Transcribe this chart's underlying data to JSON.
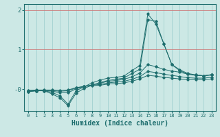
{
  "xlabel": "Humidex (Indice chaleur)",
  "xlim": [
    -0.5,
    23.5
  ],
  "ylim": [
    -0.55,
    2.15
  ],
  "bg_color": "#cce8e5",
  "line_color": "#1e6e6e",
  "grid_color_h": "#cc7777",
  "grid_color_v": "#99cccc",
  "yticks": [
    0,
    1,
    2
  ],
  "ytick_labels": [
    "-0",
    "1",
    "2"
  ],
  "xticks": [
    0,
    1,
    2,
    3,
    4,
    5,
    6,
    7,
    8,
    9,
    10,
    11,
    12,
    13,
    14,
    15,
    16,
    17,
    18,
    19,
    20,
    21,
    22,
    23
  ],
  "series": [
    {
      "x": [
        0,
        1,
        2,
        3,
        4,
        5,
        6,
        7,
        8,
        9,
        10,
        11,
        12,
        13,
        14,
        15,
        16,
        17,
        18,
        19,
        20,
        21,
        22,
        23
      ],
      "y": [
        -0.06,
        -0.04,
        -0.04,
        -0.08,
        -0.17,
        -0.38,
        -0.04,
        0.06,
        0.16,
        0.23,
        0.28,
        0.3,
        0.33,
        0.47,
        0.6,
        1.9,
        1.65,
        1.15,
        0.62,
        0.47,
        0.38,
        0.36,
        0.34,
        0.37
      ]
    },
    {
      "x": [
        0,
        1,
        2,
        3,
        4,
        5,
        6,
        7,
        8,
        9,
        10,
        11,
        12,
        13,
        14,
        15,
        16,
        17,
        18,
        19,
        20,
        21,
        22,
        23
      ],
      "y": [
        -0.06,
        -0.04,
        -0.04,
        -0.12,
        -0.22,
        -0.42,
        -0.1,
        0.02,
        0.1,
        0.17,
        0.22,
        0.25,
        0.28,
        0.4,
        0.5,
        1.76,
        1.72,
        1.15,
        0.63,
        0.49,
        0.4,
        0.36,
        0.34,
        0.36
      ]
    },
    {
      "x": [
        0,
        1,
        2,
        3,
        4,
        5,
        6,
        7,
        8,
        9,
        10,
        11,
        12,
        13,
        14,
        15,
        16,
        17,
        18,
        19,
        20,
        21,
        22,
        23
      ],
      "y": [
        -0.05,
        -0.04,
        -0.03,
        -0.05,
        -0.09,
        -0.09,
        0.01,
        0.07,
        0.11,
        0.15,
        0.2,
        0.22,
        0.25,
        0.31,
        0.41,
        0.62,
        0.57,
        0.5,
        0.46,
        0.43,
        0.38,
        0.35,
        0.34,
        0.36
      ]
    },
    {
      "x": [
        0,
        1,
        2,
        3,
        4,
        5,
        6,
        7,
        8,
        9,
        10,
        11,
        12,
        13,
        14,
        15,
        16,
        17,
        18,
        19,
        20,
        21,
        22,
        23
      ],
      "y": [
        -0.04,
        -0.03,
        -0.03,
        -0.04,
        -0.05,
        -0.04,
        0.03,
        0.07,
        0.1,
        0.12,
        0.16,
        0.18,
        0.2,
        0.25,
        0.32,
        0.45,
        0.42,
        0.38,
        0.35,
        0.32,
        0.29,
        0.28,
        0.28,
        0.3
      ]
    },
    {
      "x": [
        0,
        1,
        2,
        3,
        4,
        5,
        6,
        7,
        8,
        9,
        10,
        11,
        12,
        13,
        14,
        15,
        16,
        17,
        18,
        19,
        20,
        21,
        22,
        23
      ],
      "y": [
        -0.03,
        -0.02,
        -0.02,
        -0.02,
        -0.03,
        -0.02,
        0.04,
        0.07,
        0.09,
        0.1,
        0.13,
        0.14,
        0.16,
        0.2,
        0.26,
        0.35,
        0.33,
        0.3,
        0.28,
        0.26,
        0.24,
        0.24,
        0.24,
        0.26
      ]
    }
  ]
}
